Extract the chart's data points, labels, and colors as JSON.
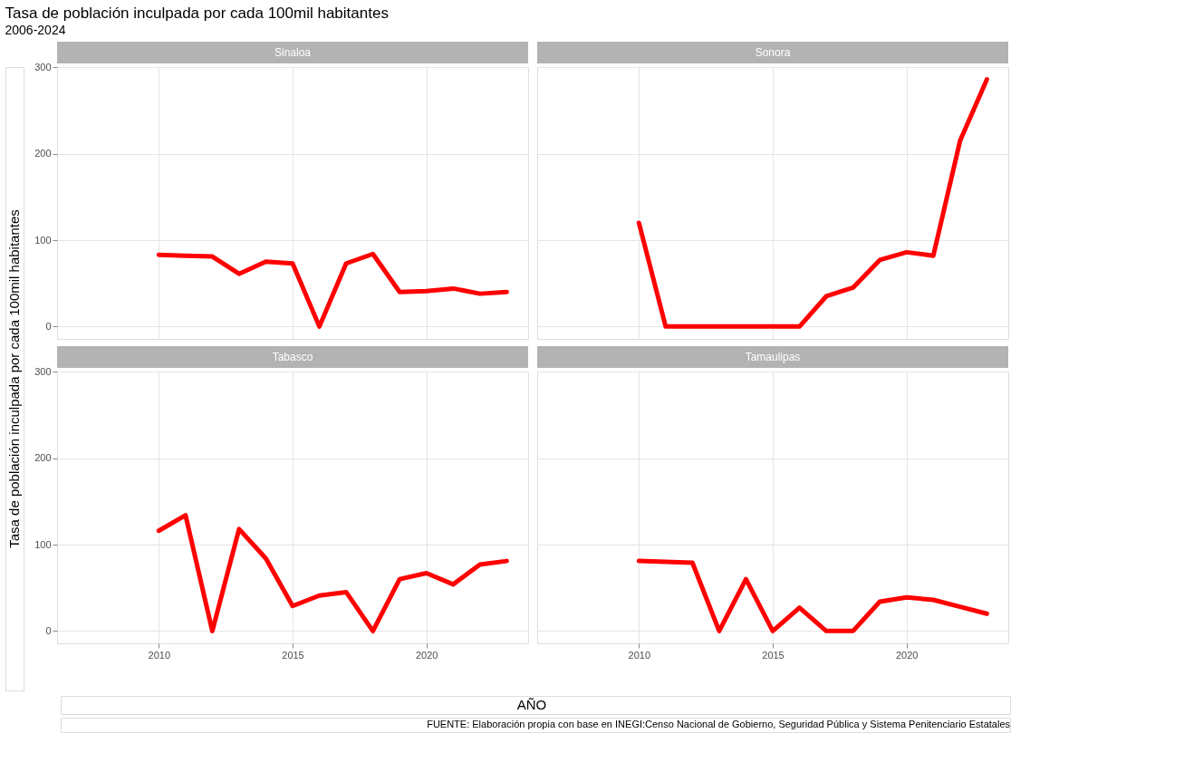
{
  "chart_data": [
    {
      "type": "line",
      "title": "Sinaloa",
      "ylabel": "Tasa de población inculpada por cada 100mil habitantes",
      "annotations": [
        "Tasa de población inculpada por cada 100mil habitantes",
        "2006-2024",
        "FUENTE: Elaboración propia con base en INEGI:Censo Nacional de Gobierno, Seguridad Pública y Sistema Penitenciario Estatales"
      ],
      "x": [
        2010,
        2011,
        2012,
        2013,
        2014,
        2015,
        2016,
        2017,
        2018,
        2019,
        2020,
        2021,
        2022,
        2023
      ],
      "xlim": [
        2006.2,
        2023.8
      ],
      "xticks": [
        2010,
        2015,
        2020
      ],
      "ylim": [
        -14.3,
        300.3
      ],
      "yticks": [
        0,
        100,
        200,
        300
      ],
      "grid": true,
      "tick_labels": "y",
      "series": [
        {
          "color": "#ff0000",
          "values": [
            83,
            82,
            81,
            61,
            75,
            73,
            0,
            73,
            84,
            40,
            41,
            44,
            38,
            40
          ]
        }
      ]
    },
    {
      "type": "line",
      "title": "Sonora",
      "x": [
        2010,
        2011,
        2012,
        2013,
        2014,
        2015,
        2016,
        2017,
        2018,
        2019,
        2020,
        2021,
        2022,
        2023
      ],
      "xlim": [
        2006.2,
        2023.8
      ],
      "xticks": [
        2010,
        2015,
        2020
      ],
      "ylim": [
        -14.3,
        300.3
      ],
      "yticks": [
        0,
        100,
        200,
        300
      ],
      "grid": true,
      "tick_labels": false,
      "series": [
        {
          "color": "#ff0000",
          "values": [
            120,
            0,
            0,
            0,
            0,
            0,
            0,
            35,
            45,
            77,
            86,
            82,
            215,
            286
          ]
        }
      ]
    },
    {
      "type": "line",
      "title": "Tabasco",
      "xlabel": "AÑO",
      "x": [
        2010,
        2011,
        2012,
        2013,
        2014,
        2015,
        2016,
        2017,
        2018,
        2019,
        2020,
        2021,
        2022,
        2023
      ],
      "xlim": [
        2006.2,
        2023.8
      ],
      "xticks": [
        2010,
        2015,
        2020
      ],
      "ylim": [
        -14.3,
        300.3
      ],
      "yticks": [
        0,
        100,
        200,
        300
      ],
      "grid": true,
      "series": [
        {
          "color": "#ff0000",
          "values": [
            116,
            134,
            0,
            118,
            84,
            29,
            41,
            45,
            0,
            60,
            67,
            54,
            77,
            81
          ]
        }
      ]
    },
    {
      "type": "line",
      "title": "Tamaulipas",
      "x": [
        2010,
        2011,
        2012,
        2013,
        2014,
        2015,
        2016,
        2017,
        2018,
        2019,
        2020,
        2021,
        2022,
        2023
      ],
      "xlim": [
        2006.2,
        2023.8
      ],
      "xticks": [
        2010,
        2015,
        2020
      ],
      "ylim": [
        -14.3,
        300.3
      ],
      "yticks": [
        0,
        100,
        200,
        300
      ],
      "grid": true,
      "tick_labels": "x",
      "series": [
        {
          "color": "#ff0000",
          "values": [
            81,
            80,
            79,
            0,
            60,
            0,
            27,
            0,
            0,
            34,
            39,
            36,
            28,
            20
          ]
        }
      ]
    }
  ]
}
